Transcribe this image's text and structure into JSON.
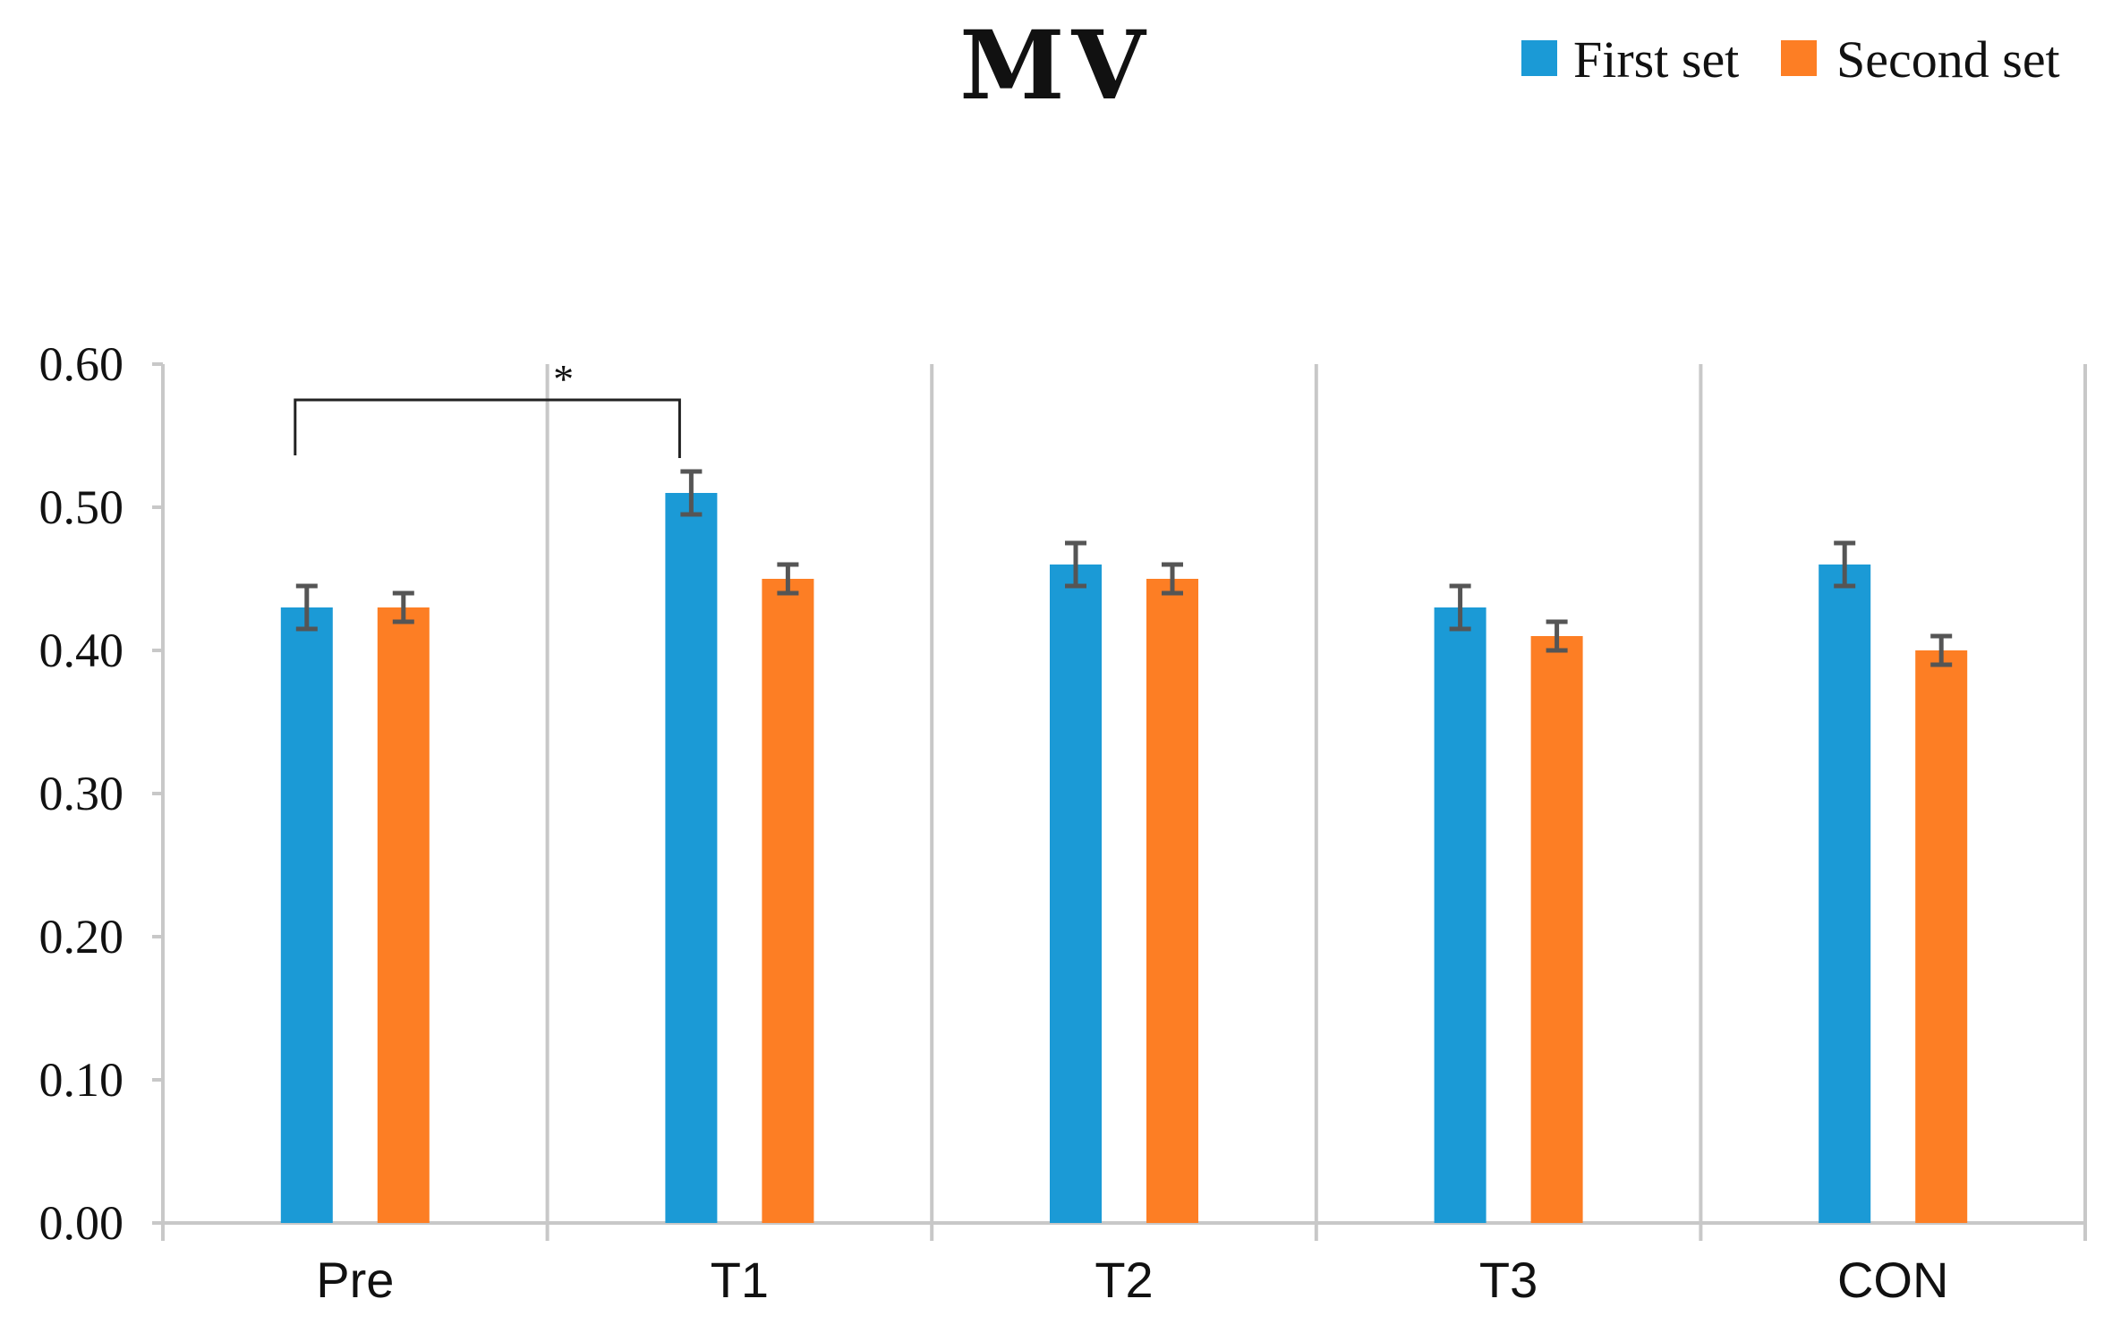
{
  "chart_data": {
    "type": "bar",
    "title": "MV",
    "categories": [
      "Pre",
      "T1",
      "T2",
      "T3",
      "CON"
    ],
    "series": [
      {
        "name": "First set",
        "color": "#1b9ad6",
        "values": [
          0.43,
          0.51,
          0.46,
          0.43,
          0.46
        ],
        "errors": [
          0.015,
          0.015,
          0.015,
          0.015,
          0.015
        ]
      },
      {
        "name": "Second set",
        "color": "#fd7e24",
        "values": [
          0.43,
          0.45,
          0.45,
          0.41,
          0.4
        ],
        "errors": [
          0.01,
          0.01,
          0.01,
          0.01,
          0.01
        ]
      }
    ],
    "ylim": [
      0,
      0.6
    ],
    "yticks": [
      0.0,
      0.1,
      0.2,
      0.3,
      0.4,
      0.5,
      0.6
    ],
    "ytick_labels": [
      "0.00",
      "0.10",
      "0.20",
      "0.30",
      "0.40",
      "0.50",
      "0.60"
    ],
    "xlabel": "",
    "ylabel": "",
    "legend_position": "top-right",
    "grid": false,
    "annotations": [
      {
        "type": "significance-bracket",
        "label": "*",
        "from": {
          "category": "Pre",
          "series": "First set"
        },
        "to": {
          "category": "T1",
          "series": "First set"
        },
        "y": 0.575
      }
    ]
  }
}
